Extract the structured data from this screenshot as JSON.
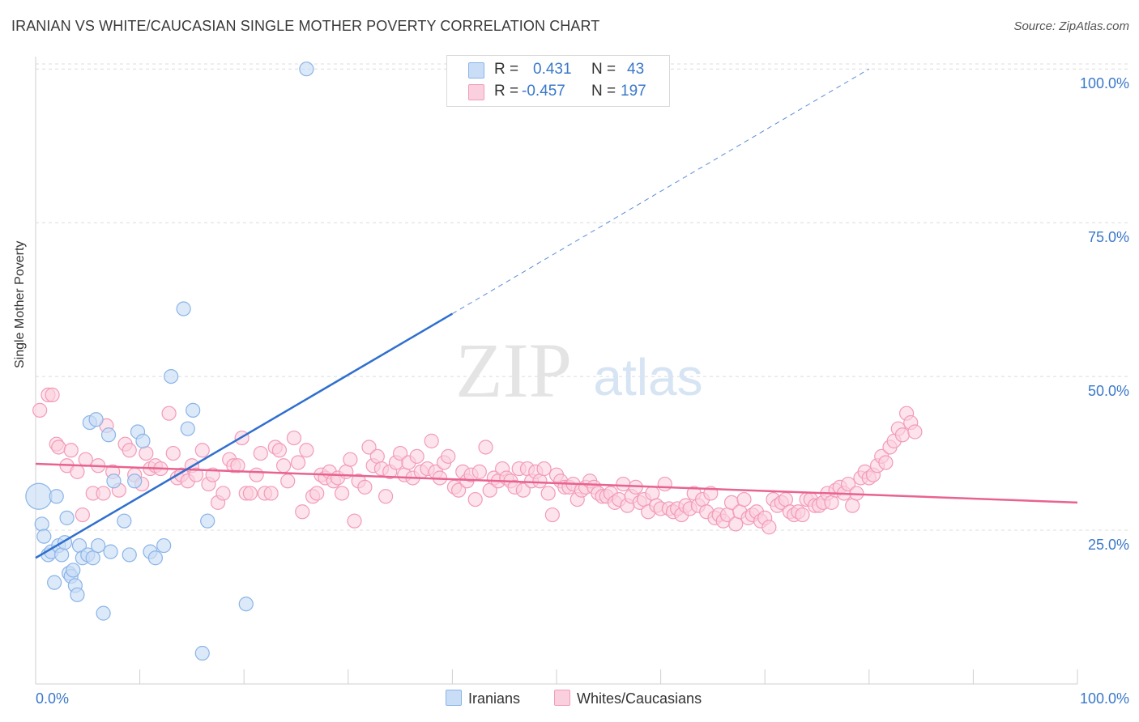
{
  "title": "IRANIAN VS WHITE/CAUCASIAN SINGLE MOTHER POVERTY CORRELATION CHART",
  "source": "Source: ZipAtlas.com",
  "watermark": {
    "zip": "ZIP",
    "atlas": "atlas"
  },
  "legend": {
    "rows": [
      {
        "r_label": "R =",
        "r_value": "0.431",
        "n_label": "N =",
        "n_value": "43",
        "color": "#8ab4e8",
        "fill": "#c9ddf6"
      },
      {
        "r_label": "R =",
        "r_value": "-0.457",
        "n_label": "N =",
        "n_value": "197",
        "color": "#f29bb8",
        "fill": "#fbd0de"
      }
    ]
  },
  "bottom_legend": {
    "iranians": "Iranians",
    "whites": "Whites/Caucasians"
  },
  "chart_data": {
    "type": "scatter",
    "title": "IRANIAN VS WHITE/CAUCASIAN SINGLE MOTHER POVERTY CORRELATION CHART",
    "xlabel": "",
    "ylabel": "Single Mother Poverty",
    "xlim": [
      0,
      100
    ],
    "ylim": [
      0,
      102
    ],
    "x_tick_labels": [
      "0.0%",
      "100.0%"
    ],
    "y_tick_labels": [
      "25.0%",
      "50.0%",
      "75.0%",
      "100.0%"
    ],
    "y_ticks": [
      25,
      50,
      75,
      100
    ],
    "grid": true,
    "legend_position": "top-center",
    "series": [
      {
        "name": "Iranians",
        "color": "#8ab4e8",
        "fill": "#c9ddf6",
        "line_color": "#2f6fcf",
        "trend": {
          "x0": 0,
          "y0": 20.5,
          "x1": 40,
          "y1": 60.2,
          "dash_to_x": 80,
          "dash_to_y": 100
        },
        "points": [
          [
            0.3,
            30.5
          ],
          [
            0.6,
            26
          ],
          [
            0.8,
            24
          ],
          [
            1.2,
            21
          ],
          [
            1.5,
            21.5
          ],
          [
            1.8,
            16.5
          ],
          [
            2,
            30.5
          ],
          [
            2.2,
            22.5
          ],
          [
            2.5,
            21
          ],
          [
            2.8,
            23
          ],
          [
            3,
            27
          ],
          [
            3.2,
            18
          ],
          [
            3.4,
            17.5
          ],
          [
            3.6,
            18.5
          ],
          [
            3.8,
            16
          ],
          [
            4,
            14.5
          ],
          [
            4.2,
            22.5
          ],
          [
            4.5,
            20.5
          ],
          [
            5,
            21
          ],
          [
            5.5,
            20.5
          ],
          [
            5.2,
            42.5
          ],
          [
            5.8,
            43
          ],
          [
            6,
            22.5
          ],
          [
            6.5,
            11.5
          ],
          [
            7,
            40.5
          ],
          [
            7.2,
            21.5
          ],
          [
            7.5,
            33
          ],
          [
            8.5,
            26.5
          ],
          [
            9,
            21
          ],
          [
            9.5,
            33
          ],
          [
            9.8,
            41
          ],
          [
            10.3,
            39.5
          ],
          [
            11,
            21.5
          ],
          [
            11.5,
            20.5
          ],
          [
            12.3,
            22.5
          ],
          [
            13,
            50
          ],
          [
            14.2,
            61
          ],
          [
            14.6,
            41.5
          ],
          [
            15.1,
            44.5
          ],
          [
            16,
            5
          ],
          [
            16.5,
            26.5
          ],
          [
            20.2,
            13
          ],
          [
            26,
            100
          ]
        ]
      },
      {
        "name": "Whites/Caucasians",
        "color": "#f29bb8",
        "fill": "#fbd0de",
        "line_color": "#e8638f",
        "trend": {
          "x0": 0,
          "y0": 35.8,
          "x1": 100,
          "y1": 29.5
        },
        "points": [
          [
            0.4,
            44.5
          ],
          [
            1.2,
            47
          ],
          [
            1.6,
            47
          ],
          [
            2,
            39
          ],
          [
            2.2,
            38.5
          ],
          [
            3,
            35.5
          ],
          [
            3.4,
            38
          ],
          [
            4,
            34.5
          ],
          [
            4.5,
            27.5
          ],
          [
            4.8,
            36.5
          ],
          [
            5.5,
            31
          ],
          [
            6,
            35.5
          ],
          [
            6.5,
            31
          ],
          [
            6.8,
            42
          ],
          [
            7.4,
            34.5
          ],
          [
            8,
            31.5
          ],
          [
            8.6,
            39
          ],
          [
            9,
            38
          ],
          [
            9.5,
            34
          ],
          [
            10.2,
            32.5
          ],
          [
            10.6,
            37.5
          ],
          [
            11,
            35
          ],
          [
            11.5,
            35.5
          ],
          [
            12,
            35
          ],
          [
            12.8,
            44
          ],
          [
            13.2,
            37.5
          ],
          [
            13.6,
            33.5
          ],
          [
            14,
            34
          ],
          [
            14.6,
            33
          ],
          [
            15,
            35.5
          ],
          [
            15.4,
            34
          ],
          [
            16,
            38
          ],
          [
            16.6,
            32.5
          ],
          [
            17,
            34
          ],
          [
            17.5,
            29.5
          ],
          [
            18,
            31
          ],
          [
            18.6,
            36.5
          ],
          [
            19,
            35.5
          ],
          [
            19.4,
            35.5
          ],
          [
            19.8,
            40
          ],
          [
            20.2,
            31
          ],
          [
            20.6,
            31
          ],
          [
            21.2,
            34
          ],
          [
            21.6,
            37.5
          ],
          [
            22,
            31
          ],
          [
            22.6,
            31
          ],
          [
            23,
            38.5
          ],
          [
            23.4,
            38
          ],
          [
            23.8,
            35.5
          ],
          [
            24.2,
            33
          ],
          [
            24.8,
            40
          ],
          [
            25.2,
            36
          ],
          [
            25.6,
            28
          ],
          [
            26,
            38
          ],
          [
            26.6,
            30.5
          ],
          [
            27,
            31
          ],
          [
            27.4,
            34
          ],
          [
            27.8,
            33.5
          ],
          [
            28.2,
            34.5
          ],
          [
            28.6,
            33
          ],
          [
            29,
            33.5
          ],
          [
            29.4,
            31
          ],
          [
            29.8,
            34.5
          ],
          [
            30.2,
            36.5
          ],
          [
            30.6,
            26.5
          ],
          [
            31,
            33
          ],
          [
            31.6,
            32
          ],
          [
            32,
            38.5
          ],
          [
            32.4,
            35.5
          ],
          [
            32.8,
            37
          ],
          [
            33.2,
            35
          ],
          [
            33.6,
            30.5
          ],
          [
            34,
            34.5
          ],
          [
            34.6,
            36
          ],
          [
            35,
            37.5
          ],
          [
            35.4,
            34
          ],
          [
            35.8,
            36
          ],
          [
            36.2,
            33.5
          ],
          [
            36.6,
            37
          ],
          [
            37,
            34.5
          ],
          [
            37.6,
            35
          ],
          [
            38,
            39.5
          ],
          [
            38.4,
            34.5
          ],
          [
            38.8,
            33.5
          ],
          [
            39.2,
            36
          ],
          [
            39.6,
            37
          ],
          [
            40.2,
            32
          ],
          [
            40.6,
            31.5
          ],
          [
            41,
            34.5
          ],
          [
            41.4,
            33
          ],
          [
            41.8,
            34
          ],
          [
            42.2,
            30
          ],
          [
            42.6,
            34.5
          ],
          [
            43.2,
            38.5
          ],
          [
            43.6,
            31.5
          ],
          [
            44,
            33.5
          ],
          [
            44.4,
            33
          ],
          [
            44.8,
            35
          ],
          [
            45.2,
            33.5
          ],
          [
            45.6,
            33
          ],
          [
            46,
            32
          ],
          [
            46.4,
            35
          ],
          [
            46.8,
            31.5
          ],
          [
            47.2,
            35
          ],
          [
            47.6,
            33
          ],
          [
            48,
            34.5
          ],
          [
            48.4,
            33
          ],
          [
            48.8,
            35
          ],
          [
            49.2,
            31
          ],
          [
            49.6,
            27.5
          ],
          [
            50,
            34
          ],
          [
            50.4,
            33
          ],
          [
            50.8,
            32
          ],
          [
            51.2,
            32
          ],
          [
            51.6,
            32.5
          ],
          [
            52,
            30
          ],
          [
            52.4,
            31.5
          ],
          [
            52.8,
            32
          ],
          [
            53.2,
            33
          ],
          [
            53.6,
            32
          ],
          [
            54,
            31
          ],
          [
            54.4,
            30.5
          ],
          [
            54.8,
            30.5
          ],
          [
            55.2,
            31
          ],
          [
            55.6,
            29.5
          ],
          [
            56,
            30
          ],
          [
            56.4,
            32.5
          ],
          [
            56.8,
            29
          ],
          [
            57.2,
            30.5
          ],
          [
            57.6,
            32
          ],
          [
            58,
            29.5
          ],
          [
            58.4,
            30
          ],
          [
            58.8,
            28
          ],
          [
            59.2,
            31
          ],
          [
            59.6,
            29
          ],
          [
            60,
            28.5
          ],
          [
            60.4,
            32.5
          ],
          [
            60.8,
            28.5
          ],
          [
            61.2,
            28
          ],
          [
            61.6,
            28.5
          ],
          [
            62,
            27.5
          ],
          [
            62.4,
            29
          ],
          [
            62.8,
            28.5
          ],
          [
            63.2,
            31
          ],
          [
            63.6,
            29
          ],
          [
            64,
            30
          ],
          [
            64.4,
            28
          ],
          [
            64.8,
            31
          ],
          [
            65.2,
            27
          ],
          [
            65.6,
            27.5
          ],
          [
            66,
            26.5
          ],
          [
            66.4,
            27.5
          ],
          [
            66.8,
            29.5
          ],
          [
            67.2,
            26
          ],
          [
            67.6,
            28
          ],
          [
            68,
            30
          ],
          [
            68.4,
            27
          ],
          [
            68.8,
            27.5
          ],
          [
            69.2,
            28
          ],
          [
            69.6,
            26.5
          ],
          [
            70,
            27
          ],
          [
            70.4,
            25.5
          ],
          [
            70.8,
            30
          ],
          [
            71.2,
            29
          ],
          [
            71.6,
            29.5
          ],
          [
            72,
            30
          ],
          [
            72.4,
            28
          ],
          [
            72.8,
            27.5
          ],
          [
            73.2,
            28
          ],
          [
            73.6,
            27.5
          ],
          [
            74,
            30
          ],
          [
            74.4,
            30
          ],
          [
            74.8,
            29
          ],
          [
            75.2,
            29
          ],
          [
            75.6,
            29.5
          ],
          [
            76,
            31
          ],
          [
            76.4,
            29.5
          ],
          [
            76.8,
            31.5
          ],
          [
            77.2,
            32
          ],
          [
            77.6,
            31
          ],
          [
            78,
            32.5
          ],
          [
            78.4,
            29
          ],
          [
            78.8,
            31
          ],
          [
            79.2,
            33.5
          ],
          [
            79.6,
            34.5
          ],
          [
            80,
            33.5
          ],
          [
            80.4,
            34
          ],
          [
            80.8,
            35.5
          ],
          [
            81.2,
            37
          ],
          [
            81.6,
            36
          ],
          [
            82,
            38.5
          ],
          [
            82.4,
            39.5
          ],
          [
            82.8,
            41.5
          ],
          [
            83.2,
            40.5
          ],
          [
            83.6,
            44
          ],
          [
            84,
            42.5
          ],
          [
            84.4,
            41
          ]
        ]
      }
    ]
  }
}
